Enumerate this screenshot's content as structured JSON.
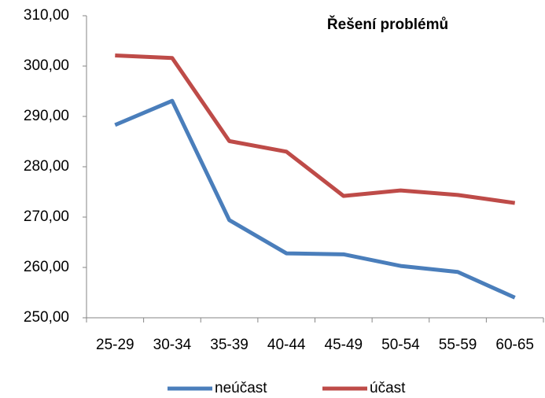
{
  "chart_data": {
    "type": "line",
    "title": "Řešení problémů",
    "categories": [
      "25-29",
      "30-34",
      "35-39",
      "40-44",
      "45-49",
      "50-54",
      "55-59",
      "60-65"
    ],
    "series": [
      {
        "name": "neúčast",
        "color": "#4a7ebb",
        "values": [
          288.3,
          293.1,
          269.4,
          262.8,
          262.6,
          260.3,
          259.1,
          254.0
        ]
      },
      {
        "name": "účast",
        "color": "#be4b48",
        "values": [
          302.1,
          301.6,
          285.1,
          283.0,
          274.2,
          275.3,
          274.4,
          272.8
        ]
      }
    ],
    "ylim": [
      250,
      310
    ],
    "yticks": [
      {
        "value": 250,
        "label": "250,00"
      },
      {
        "value": 260,
        "label": "260,00"
      },
      {
        "value": 270,
        "label": "270,00"
      },
      {
        "value": 280,
        "label": "280,00"
      },
      {
        "value": 290,
        "label": "290,00"
      },
      {
        "value": 300,
        "label": "300,00"
      },
      {
        "value": 310,
        "label": "310,00"
      }
    ],
    "legend": "bottom"
  }
}
